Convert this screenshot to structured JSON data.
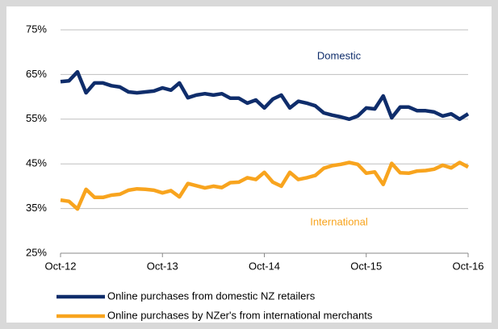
{
  "chart_data": {
    "type": "line",
    "categories": [
      "Oct-12",
      null,
      null,
      null,
      null,
      null,
      null,
      null,
      null,
      null,
      null,
      null,
      "Oct-13",
      null,
      null,
      null,
      null,
      null,
      null,
      null,
      null,
      null,
      null,
      null,
      "Oct-14",
      null,
      null,
      null,
      null,
      null,
      null,
      null,
      null,
      null,
      null,
      null,
      "Oct-15",
      null,
      null,
      null,
      null,
      null,
      null,
      null,
      null,
      null,
      null,
      null,
      "Oct-16"
    ],
    "series": [
      {
        "name": "Online purchases from domestic NZ retailers",
        "color": "#0f2d6b",
        "values": [
          63.4,
          63.6,
          65.6,
          60.9,
          63.1,
          63.1,
          62.5,
          62.2,
          61.1,
          60.9,
          61.1,
          61.3,
          62.0,
          61.5,
          63.1,
          59.8,
          60.4,
          60.7,
          60.4,
          60.7,
          59.7,
          59.7,
          58.6,
          59.3,
          57.5,
          59.5,
          60.4,
          57.5,
          59.0,
          58.6,
          58.0,
          56.4,
          55.9,
          55.5,
          55.0,
          55.7,
          57.5,
          57.3,
          60.2,
          55.3,
          57.7,
          57.7,
          56.9,
          56.9,
          56.6,
          55.7,
          56.2,
          55.0,
          56.2
        ]
      },
      {
        "name": "Online purchases by NZer's from international merchants",
        "color": "#f8a41e",
        "values": [
          36.9,
          36.6,
          34.9,
          39.3,
          37.5,
          37.5,
          38.0,
          38.2,
          39.1,
          39.4,
          39.3,
          39.1,
          38.5,
          39.0,
          37.6,
          40.6,
          40.1,
          39.6,
          40.0,
          39.7,
          40.8,
          40.9,
          41.9,
          41.5,
          43.1,
          40.9,
          40.0,
          43.1,
          41.5,
          41.9,
          42.4,
          44.0,
          44.6,
          44.9,
          45.3,
          44.9,
          42.9,
          43.2,
          40.4,
          45.1,
          43.0,
          42.9,
          43.4,
          43.5,
          43.8,
          44.7,
          44.1,
          45.3,
          44.3
        ]
      }
    ],
    "annotations": [
      "Domestic",
      "International"
    ],
    "ylim": [
      25,
      75
    ],
    "yticks": [
      {
        "value": 25,
        "label": "25%"
      },
      {
        "value": 35,
        "label": "35%"
      },
      {
        "value": 45,
        "label": "45%"
      },
      {
        "value": 55,
        "label": "55%"
      },
      {
        "value": 65,
        "label": "65%"
      },
      {
        "value": 75,
        "label": "75%"
      }
    ],
    "grid": true
  }
}
